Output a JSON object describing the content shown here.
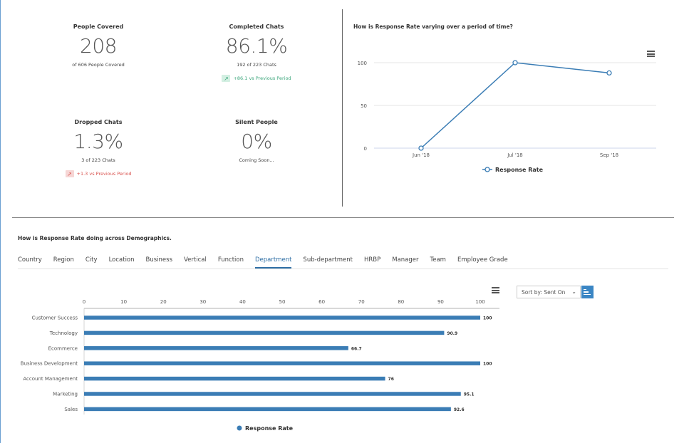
{
  "kpis": {
    "people_covered": {
      "title": "People Covered",
      "value": "208",
      "sub": "of 606 People Covered"
    },
    "completed_chats": {
      "title": "Completed Chats",
      "value": "86.1%",
      "sub": "192 of 223 Chats",
      "trend": "+86.1 vs Previous Period"
    },
    "dropped_chats": {
      "title": "Dropped Chats",
      "value": "1.3%",
      "sub": "3 of 223 Chats",
      "trend": "+1.3 vs Previous Period"
    },
    "silent_people": {
      "title": "Silent People",
      "value": "0%",
      "sub": "Coming Soon..."
    }
  },
  "line_section": {
    "title": "How is Response Rate varying over a period of time?"
  },
  "demographics": {
    "title": "How is Response Rate doing across Demographics.",
    "tabs": [
      "Country",
      "Region",
      "City",
      "Location",
      "Business",
      "Vertical",
      "Function",
      "Department",
      "Sub-department",
      "HRBP",
      "Manager",
      "Team",
      "Employee Grade"
    ],
    "active_tab": "Department",
    "sort_label": "Sort by: Sent On"
  },
  "colors": {
    "series": "#3b7db5",
    "accent": "#2f6fa5"
  },
  "chart_data": [
    {
      "type": "line",
      "title": "",
      "x": [
        "Jun '18",
        "Jul '18",
        "Sep '18"
      ],
      "series": [
        {
          "name": "Response Rate",
          "values": [
            0,
            100,
            88
          ]
        }
      ],
      "ylim": [
        0,
        100
      ],
      "yticks": [
        0,
        50,
        100
      ],
      "grid": true,
      "legend": "bottom-center"
    },
    {
      "type": "bar",
      "orientation": "horizontal",
      "categories": [
        "Customer Success",
        "Technology",
        "Ecommerce",
        "Business Development",
        "Account Management",
        "Marketing",
        "Sales"
      ],
      "series": [
        {
          "name": "Response Rate",
          "values": [
            100,
            90.9,
            66.7,
            100,
            76,
            95.1,
            92.6
          ]
        }
      ],
      "xlim": [
        0,
        100
      ],
      "xticks": [
        0,
        10,
        20,
        30,
        40,
        50,
        60,
        70,
        80,
        90,
        100
      ],
      "legend": "bottom-center"
    }
  ]
}
